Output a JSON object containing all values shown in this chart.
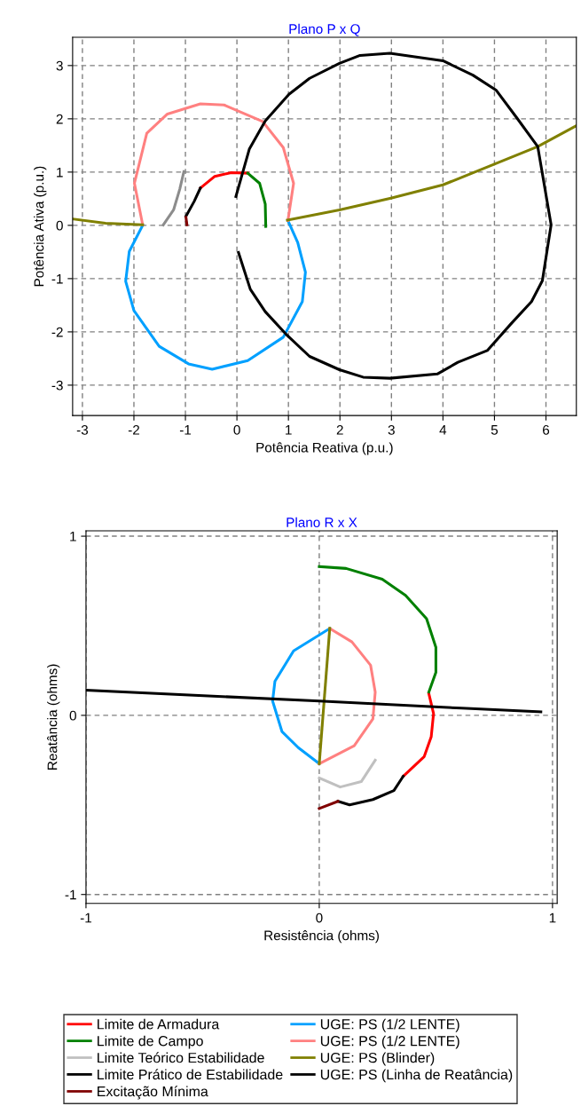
{
  "chart_data": [
    {
      "type": "line",
      "title": "Plano P x Q",
      "xlabel": "Potência Reativa (p.u.)",
      "ylabel": "Potência Ativa (p.u.)",
      "xlim": [
        -3.19,
        6.59
      ],
      "ylim": [
        -3.57,
        3.53
      ],
      "xticks": [
        -3,
        -2,
        -1,
        0,
        1,
        2,
        3,
        4,
        5,
        6
      ],
      "yticks": [
        -3,
        -2,
        -1,
        0,
        1,
        2,
        3
      ],
      "grid": true,
      "marker": "none",
      "line_style": "solid",
      "series": [
        {
          "color": "#ff0000",
          "x": [
            -0.71,
            -0.43,
            -0.11,
            0.21
          ],
          "values": [
            0.7,
            0.92,
            0.99,
            0.98
          ]
        },
        {
          "color": "#008000",
          "x": [
            0.21,
            0.44,
            0.55,
            0.56
          ],
          "values": [
            0.98,
            0.79,
            0.4,
            -0.02
          ]
        },
        {
          "color": "#8c8c8c",
          "x": [
            -1.43,
            -1.23,
            -1.11,
            -1.03
          ],
          "values": [
            0.01,
            0.29,
            0.68,
            1.01
          ]
        },
        {
          "color": "#000000",
          "x": [
            -0.99,
            -0.83,
            -0.71
          ],
          "values": [
            0.17,
            0.45,
            0.7
          ]
        },
        {
          "color": "#800000",
          "x": [
            -0.97,
            -0.99
          ],
          "values": [
            0.01,
            0.15
          ]
        },
        {
          "color": "#00a0ff",
          "x": [
            -1.83,
            -2.09,
            -2.16,
            -2.0,
            -1.51,
            -0.94,
            -0.48,
            0.21,
            0.9,
            1.27,
            1.33,
            1.18,
            0.99
          ],
          "values": [
            0.0,
            -0.49,
            -1.05,
            -1.6,
            -2.27,
            -2.6,
            -2.7,
            -2.54,
            -2.1,
            -1.43,
            -0.88,
            -0.32,
            0.09
          ]
        },
        {
          "color": "#ff8080",
          "x": [
            -1.83,
            -1.99,
            -1.75,
            -1.35,
            -0.71,
            -0.25,
            0.5,
            0.9,
            1.1,
            0.99
          ],
          "values": [
            0.01,
            0.79,
            1.73,
            2.09,
            2.28,
            2.26,
            1.95,
            1.46,
            0.79,
            0.09
          ]
        },
        {
          "color": "#808000",
          "x": [
            -3.19,
            -2.55,
            -1.83,
            null,
            0.98,
            1.99,
            2.99,
            4.0,
            5.0,
            5.84,
            6.59
          ],
          "values": [
            0.12,
            0.04,
            0.01,
            null,
            0.1,
            0.29,
            0.51,
            0.76,
            1.15,
            1.48,
            1.87
          ]
        },
        {
          "color": "#000000",
          "x": [
            -0.02,
            0.24,
            0.55,
            1.01,
            1.41,
            1.99,
            2.39,
            2.97,
            4.0,
            4.58,
            5.03,
            5.44,
            5.84,
            6.1,
            5.93,
            5.72,
            5.32,
            4.86,
            4.29,
            3.89,
            2.97,
            2.45,
            1.99,
            1.41,
            0.95,
            0.55,
            0.26,
            0.03
          ],
          "values": [
            0.54,
            1.43,
            1.96,
            2.46,
            2.76,
            3.04,
            3.19,
            3.23,
            3.09,
            2.82,
            2.54,
            2.01,
            1.48,
            0.01,
            -1.04,
            -1.43,
            -1.85,
            -2.35,
            -2.57,
            -2.79,
            -2.87,
            -2.85,
            -2.71,
            -2.46,
            -2.04,
            -1.62,
            -1.2,
            -0.51
          ]
        }
      ]
    },
    {
      "type": "line",
      "title": "Plano R x X",
      "xlabel": "Resistência (ohms)",
      "ylabel": "Reatância (ohms)",
      "xlim": [
        -1.0,
        1.02
      ],
      "ylim": [
        -1.05,
        1.03
      ],
      "xticks": [
        -1,
        0,
        1
      ],
      "yticks": [
        -1,
        0,
        1
      ],
      "grid": true,
      "marker": "none",
      "line_style": "solid",
      "legend": "bottom",
      "series": [
        {
          "name": "Limite de Armadura",
          "color": "#ff0000",
          "x": [
            0.47,
            0.49,
            0.48,
            0.45,
            0.36
          ],
          "values": [
            0.12,
            0.01,
            -0.12,
            -0.23,
            -0.34
          ]
        },
        {
          "name": "Limite de Campo",
          "color": "#008000",
          "x": [
            0.0,
            0.115,
            0.27,
            0.37,
            0.46,
            0.5,
            0.5,
            0.47
          ],
          "values": [
            0.83,
            0.82,
            0.76,
            0.67,
            0.54,
            0.38,
            0.24,
            0.13
          ]
        },
        {
          "name": "Limite Teórico Estabilidade",
          "color": "#c0c0c0",
          "x": [
            0.0,
            0.09,
            0.18,
            0.24
          ],
          "values": [
            -0.35,
            -0.4,
            -0.37,
            -0.25
          ]
        },
        {
          "name": "Limite Prático de Estabilidade",
          "color": "#000000",
          "x": [
            0.36,
            0.32,
            0.23,
            0.13,
            0.08
          ],
          "values": [
            -0.34,
            -0.42,
            -0.47,
            -0.5,
            -0.48
          ]
        },
        {
          "name": "Excitação Mínima",
          "color": "#800000",
          "x": [
            0.08,
            0.0
          ],
          "values": [
            -0.48,
            -0.52
          ]
        },
        {
          "name": "UGE: PS (1/2 LENTE)",
          "color": "#00a0ff",
          "x": [
            0.045,
            -0.11,
            -0.19,
            -0.2,
            -0.16,
            -0.09,
            0.0
          ],
          "values": [
            0.485,
            0.36,
            0.19,
            0.08,
            -0.09,
            -0.18,
            -0.27
          ]
        },
        {
          "name": "UGE: PS (1/2 LENTE)",
          "color": "#ff8080",
          "x": [
            0.045,
            0.14,
            0.22,
            0.24,
            0.23,
            0.15,
            0.0
          ],
          "values": [
            0.485,
            0.41,
            0.28,
            0.13,
            -0.02,
            -0.17,
            -0.27
          ]
        },
        {
          "name": "UGE: PS (Blinder)",
          "color": "#808000",
          "x": [
            0.0,
            0.045
          ],
          "values": [
            -0.27,
            0.485
          ]
        },
        {
          "name": "UGE: PS (Linha de Reatância)",
          "color": "#000000",
          "x": [
            -1.0,
            0.0,
            0.61,
            0.95
          ],
          "values": [
            0.14,
            0.08,
            0.04,
            0.02
          ]
        }
      ]
    }
  ]
}
